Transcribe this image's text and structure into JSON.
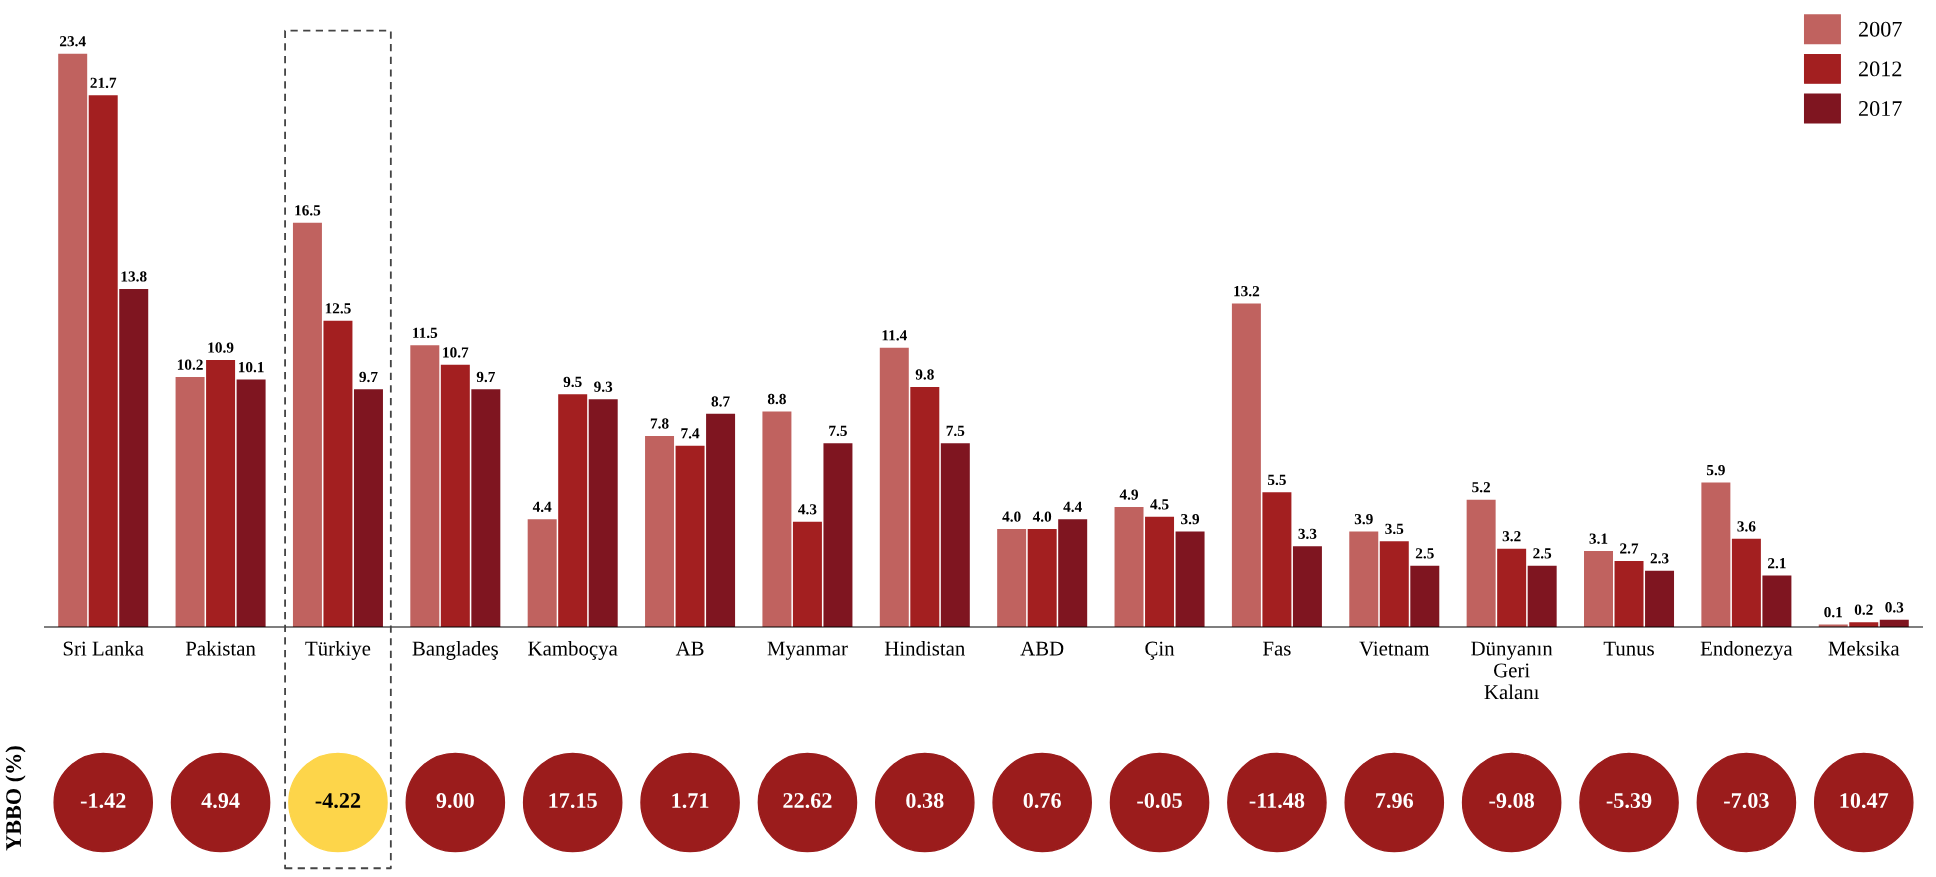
{
  "chart_data": [
    {
      "type": "bar",
      "categories": [
        "Sri Lanka",
        "Pakistan",
        "Türkiye",
        "Bangladeş",
        "Kamboçya",
        "AB",
        "Myanmar",
        "Hindistan",
        "ABD",
        "Çin",
        "Fas",
        "Vietnam",
        "Dünyanın\nGeri\nKalanı",
        "Tunus",
        "Endonezya",
        "Meksika"
      ],
      "series": [
        {
          "name": "2007",
          "color": "#c0625f",
          "values": [
            23.4,
            10.2,
            16.5,
            11.5,
            4.4,
            7.8,
            8.8,
            11.4,
            4.0,
            4.9,
            13.2,
            3.9,
            5.2,
            3.1,
            5.9,
            0.1
          ],
          "value_labels": [
            "23.4",
            "10.2",
            "16.5",
            "11.5",
            "4.4",
            "7.8",
            "8.8",
            "11.4",
            "4.0",
            "4.9",
            "13.2",
            "3.9",
            "5.2",
            "3.1",
            "5.9",
            "0.1"
          ]
        },
        {
          "name": "2012",
          "color": "#a31f20",
          "values": [
            21.7,
            10.9,
            12.5,
            10.7,
            9.5,
            7.4,
            4.3,
            9.8,
            4.0,
            4.5,
            5.5,
            3.5,
            3.2,
            2.7,
            3.6,
            0.2
          ],
          "value_labels": [
            "21.7",
            "10.9",
            "12.5",
            "10.7",
            "9.5",
            "7.4",
            "4.3",
            "9.8",
            "4.0",
            "4.5",
            "5.5",
            "3.5",
            "3.2",
            "2.7",
            "3.6",
            "0.2"
          ]
        },
        {
          "name": "2017",
          "color": "#7f1520",
          "values": [
            13.8,
            10.1,
            9.7,
            9.7,
            9.3,
            8.7,
            7.5,
            7.5,
            4.4,
            3.9,
            3.3,
            2.5,
            2.5,
            2.3,
            2.1,
            0.3
          ],
          "value_labels": [
            "13.8",
            "10.1",
            "9.7",
            "9.7",
            "9.3",
            "8.7",
            "7.5",
            "7.5",
            "4.4",
            "3.9",
            "3.3",
            "2.5",
            "2.5",
            "2.3",
            "2.1",
            "0.3"
          ]
        }
      ],
      "grid": false,
      "legend": "top right"
    },
    {
      "type": "other",
      "ylabel": "YBBO (%)",
      "categories": [
        null,
        null,
        null,
        null,
        null,
        null,
        null,
        null,
        null,
        null,
        null,
        null,
        null,
        null,
        null,
        null
      ],
      "values": [
        -1.42,
        4.94,
        -4.22,
        9.0,
        17.15,
        1.71,
        22.62,
        0.38,
        0.76,
        -0.05,
        -11.48,
        7.96,
        -9.08,
        -5.39,
        -7.03,
        10.47
      ],
      "value_labels": [
        "-1.42",
        "4.94",
        "-4.22",
        "9.00",
        "17.15",
        "1.71",
        "22.62",
        "0.38",
        "0.76",
        "-0.05",
        "-11.48",
        "7.96",
        "-9.08",
        "-5.39",
        "-7.03",
        "10.47"
      ],
      "colors": [
        "#9b1c1c",
        "#9b1c1c",
        "#fdd54a",
        "#9b1c1c",
        "#9b1c1c",
        "#9b1c1c",
        "#9b1c1c",
        "#9b1c1c",
        "#9b1c1c",
        "#9b1c1c",
        "#9b1c1c",
        "#9b1c1c",
        "#9b1c1c",
        "#9b1c1c",
        "#9b1c1c",
        "#9b1c1c"
      ]
    }
  ]
}
